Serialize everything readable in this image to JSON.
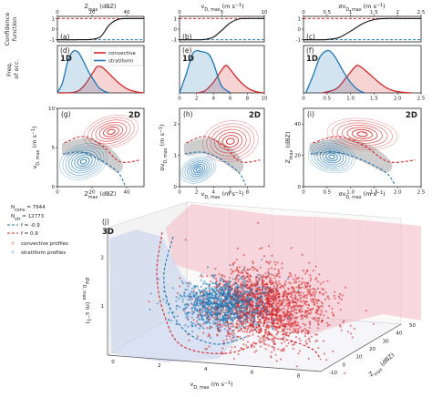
{
  "colors": {
    "convective": "#d62728",
    "stratiform": "#1f77b4",
    "gray": "#bdbdbd"
  },
  "chart_data": [
    {
      "type": "line",
      "panel": "(a)",
      "xlabel": "Z_max (dBZ)",
      "xlim": [
        0,
        50
      ],
      "xticks": [
        0,
        20,
        40
      ],
      "ylabel": "Confidence function",
      "ylim": [
        -1,
        1
      ],
      "yticks": [
        1,
        0,
        -1
      ],
      "series": [
        {
          "x": [
            0,
            5,
            10,
            15,
            20,
            25,
            30,
            35,
            40,
            45,
            50
          ],
          "values": [
            -1,
            -1,
            -1,
            -0.99,
            -0.96,
            -0.7,
            0.4,
            0.92,
            0.99,
            1,
            1
          ]
        }
      ]
    },
    {
      "type": "line",
      "panel": "(b)",
      "xlabel": "v_D,max (m s^-1)",
      "xlim": [
        0,
        10
      ],
      "xticks": [
        0,
        5,
        10
      ],
      "ylim": [
        -1,
        1
      ],
      "yticks": [
        1,
        0,
        -1
      ],
      "series": [
        {
          "x": [
            0,
            1,
            2,
            3,
            4,
            5,
            6,
            7,
            8,
            10
          ],
          "values": [
            -1,
            -1,
            -1,
            -0.97,
            -0.75,
            -0.1,
            0.6,
            0.95,
            1,
            1
          ]
        }
      ]
    },
    {
      "type": "line",
      "panel": "(c)",
      "xlabel": "σv_D,max (m s^-1)",
      "xlim": [
        0,
        2.5
      ],
      "xticks": [
        0,
        0.5,
        1.0,
        1.5,
        2.0,
        2.5
      ],
      "ylim": [
        -1,
        1
      ],
      "yticks": [
        1,
        0,
        -1
      ],
      "series": [
        {
          "x": [
            0,
            0.25,
            0.5,
            0.75,
            1.0,
            1.25,
            1.5,
            1.75,
            2.0,
            2.5
          ],
          "values": [
            -1,
            -1,
            -0.98,
            -0.8,
            -0.2,
            0.5,
            0.9,
            1,
            1,
            1
          ]
        }
      ]
    },
    {
      "type": "area",
      "panel": "(d)",
      "tag": "1D",
      "ylabel": "Freq. of occ.",
      "xlim": [
        0,
        50
      ],
      "legend": [
        "convective",
        "stratiform"
      ],
      "series": [
        {
          "name": "convective",
          "x": [
            0,
            10,
            15,
            20,
            23,
            26,
            30,
            35,
            40,
            45,
            50
          ],
          "values": [
            0,
            0.02,
            0.15,
            0.45,
            0.62,
            0.6,
            0.45,
            0.25,
            0.1,
            0.03,
            0
          ]
        },
        {
          "name": "stratiform",
          "x": [
            0,
            3,
            6,
            9,
            12,
            15,
            18,
            21,
            24,
            27,
            30
          ],
          "values": [
            0,
            0.25,
            0.75,
            0.98,
            0.96,
            0.75,
            0.5,
            0.3,
            0.12,
            0.04,
            0
          ]
        }
      ]
    },
    {
      "type": "area",
      "panel": "(e)",
      "tag": "1D",
      "xlim": [
        0,
        10
      ],
      "xticks": [
        0,
        2,
        4,
        6,
        8,
        10
      ],
      "series": [
        {
          "name": "convective",
          "x": [
            2,
            3,
            4,
            5,
            5.5,
            6,
            7,
            8,
            9,
            10
          ],
          "values": [
            0,
            0.05,
            0.25,
            0.55,
            0.65,
            0.55,
            0.3,
            0.12,
            0.03,
            0
          ]
        },
        {
          "name": "stratiform",
          "x": [
            0,
            0.8,
            1.5,
            2,
            2.5,
            3,
            3.5,
            4,
            4.5,
            5,
            6
          ],
          "values": [
            0,
            0.45,
            0.9,
            1,
            0.98,
            0.96,
            0.9,
            0.7,
            0.4,
            0.15,
            0
          ]
        }
      ]
    },
    {
      "type": "area",
      "panel": "(f)",
      "tag": "1D",
      "xlim": [
        0,
        2.5
      ],
      "xticks": [
        0,
        0.5,
        1.0,
        1.5,
        2.0,
        2.5
      ],
      "series": [
        {
          "name": "convective",
          "x": [
            0.4,
            0.7,
            0.9,
            1.1,
            1.2,
            1.4,
            1.6,
            1.8,
            2.0,
            2.3
          ],
          "values": [
            0,
            0.1,
            0.35,
            0.62,
            0.63,
            0.45,
            0.25,
            0.1,
            0.03,
            0
          ]
        },
        {
          "name": "stratiform",
          "x": [
            0.05,
            0.2,
            0.35,
            0.5,
            0.6,
            0.7,
            0.85,
            1.0,
            1.15,
            1.3
          ],
          "values": [
            0,
            0.4,
            0.85,
            1,
            0.95,
            0.8,
            0.5,
            0.25,
            0.08,
            0
          ]
        }
      ]
    },
    {
      "type": "scatter",
      "panel": "(g)",
      "tag": "2D",
      "xlabel": "Z_max (dBZ)",
      "ylabel": "v_D,max (m s^-1)",
      "xlim": [
        0,
        50
      ],
      "ylim": [
        0,
        10
      ],
      "xticks": [
        0,
        20,
        40
      ],
      "yticks": [
        0,
        5,
        10
      ]
    },
    {
      "type": "scatter",
      "panel": "(h)",
      "tag": "2D",
      "xlabel": "v_D,max (m s^-1)",
      "ylabel": "σv_D,max (m s^-1)",
      "xlim": [
        0,
        10
      ],
      "ylim": [
        0,
        2.5
      ],
      "xticks": [
        0,
        2,
        4,
        6,
        8
      ],
      "yticks": [
        0,
        1,
        2
      ]
    },
    {
      "type": "scatter",
      "panel": "(i)",
      "tag": "2D",
      "xlabel": "σv_D,max (m s^-1)",
      "ylabel": "Z_max (dBZ)",
      "xlim": [
        0,
        2.5
      ],
      "ylim": [
        0,
        50
      ],
      "xticks": [
        0,
        0.5,
        1.0,
        1.5,
        2.0,
        2.5
      ],
      "yticks": [
        0,
        20,
        40
      ]
    },
    {
      "type": "scatter",
      "panel": "(j)",
      "tag": "3D",
      "xlabel": "v_D,max (m s^-1)",
      "ylabel": "Z_max (dBZ)",
      "zlabel": "σv_D,max (m s^-1)",
      "xticks": [
        0,
        2,
        4,
        6,
        8
      ],
      "yticks": [
        -10,
        0,
        10,
        20,
        30,
        40,
        50
      ],
      "zticks": [
        1,
        2
      ],
      "legend": [
        {
          "name": "N_conv = 7944"
        },
        {
          "name": "N_str = 12773"
        },
        {
          "name": "f = -0.9"
        },
        {
          "name": "f = 0.9"
        },
        {
          "name": "convective profiles"
        },
        {
          "name": "stratiform profiles"
        }
      ]
    }
  ]
}
